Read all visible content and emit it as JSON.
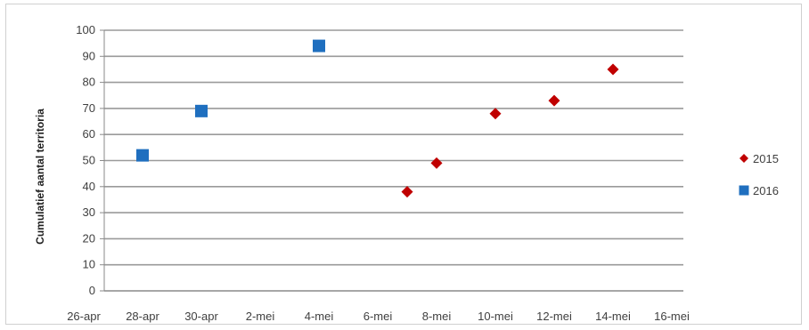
{
  "chart_data": {
    "type": "scatter",
    "title": "",
    "xlabel": "",
    "ylabel": "Cumulatief aantal territoria",
    "ylim": [
      0,
      100
    ],
    "yticks": [
      0,
      10,
      20,
      30,
      40,
      50,
      60,
      70,
      80,
      90,
      100
    ],
    "xticks": [
      "26-apr",
      "28-apr",
      "30-apr",
      "2-mei",
      "4-mei",
      "6-mei",
      "8-mei",
      "10-mei",
      "12-mei",
      "14-mei",
      "16-mei"
    ],
    "x_unit": "date",
    "grid": "horizontal",
    "legend_position": "right",
    "series": [
      {
        "name": "2015",
        "color": "#c00000",
        "marker": "diamond",
        "points": [
          {
            "x": "7-mei",
            "y": 38
          },
          {
            "x": "8-mei",
            "y": 49
          },
          {
            "x": "10-mei",
            "y": 68
          },
          {
            "x": "12-mei",
            "y": 73
          },
          {
            "x": "14-mei",
            "y": 85
          }
        ]
      },
      {
        "name": "2016",
        "color": "#1f6fbf",
        "marker": "square",
        "points": [
          {
            "x": "28-apr",
            "y": 52
          },
          {
            "x": "30-apr",
            "y": 69
          },
          {
            "x": "4-mei",
            "y": 94
          }
        ]
      }
    ]
  }
}
